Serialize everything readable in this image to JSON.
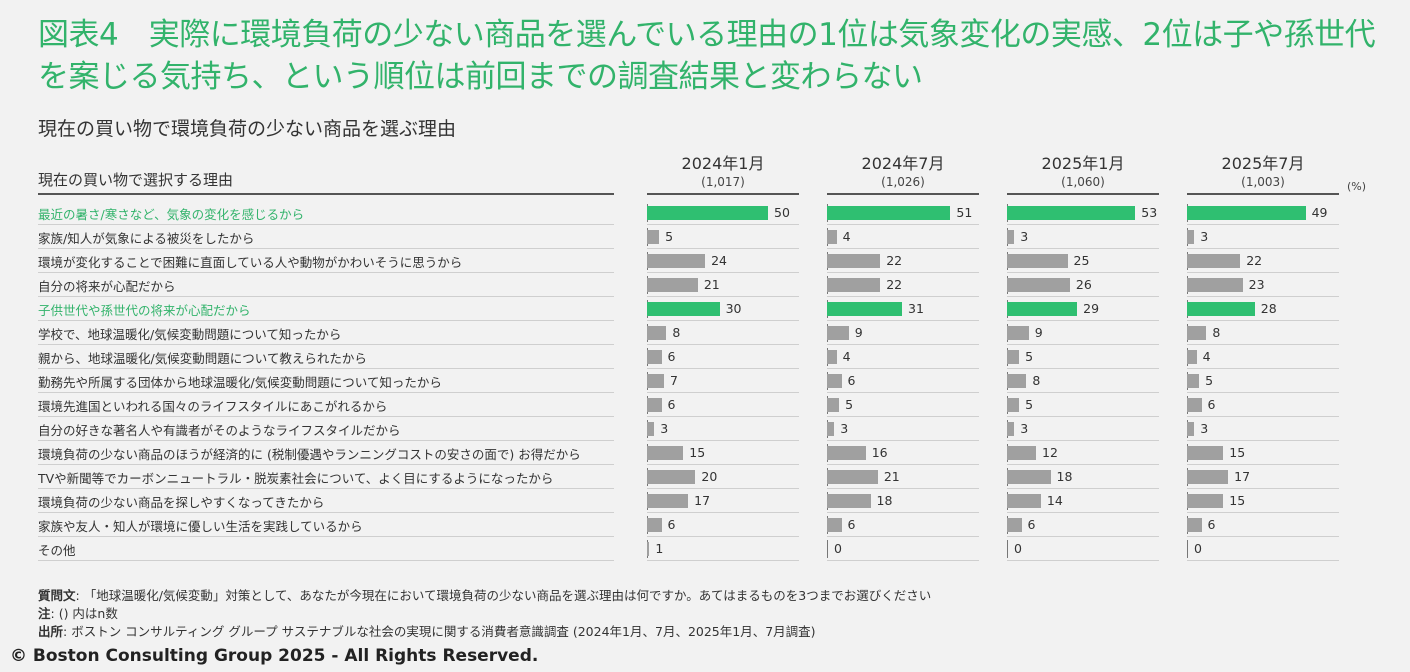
{
  "title": "図表4　実際に環境負荷の少ない商品を選んでいる理由の1位は気象変化の実感、2位は子や孫世代を案じる気持ち、という順位は前回までの調査結果と変わらない",
  "subtitle": "現在の買い物で環境負荷の少ない商品を選ぶ理由",
  "unit": "(%)",
  "notes": {
    "question_label": "質問文",
    "question": ": 「地球温暖化/気候変動」対策として、あなたが今現在において環境負荷の少ない商品を選ぶ理由は何ですか。あてはまるものを3つまでお選びください",
    "note_label": "注",
    "note": ": () 内はn数",
    "source_label": "出所",
    "source": ": ボストン コンサルティング グループ サステナブルな社会の実現に関する消費者意識調査 (2024年1月、7月、2025年1月、7月調査)"
  },
  "copyright": "© Boston Consulting Group 2025 - All Rights Reserved.",
  "colors": {
    "accent": "#2fbf71",
    "bar": "#a0a0a0",
    "title": "#32b36b"
  },
  "chart_data": {
    "type": "bar",
    "orientation": "horizontal",
    "category_header": "現在の買い物で選択する理由",
    "categories": [
      "最近の暑さ/寒さなど、気象の変化を感じるから",
      "家族/知人が気象による被災をしたから",
      "環境が変化することで困難に直面している人や動物がかわいそうに思うから",
      "自分の将来が心配だから",
      "子供世代や孫世代の将来が心配だから",
      "学校で、地球温暖化/気候変動問題について知ったから",
      "親から、地球温暖化/気候変動問題について教えられたから",
      "勤務先や所属する団体から地球温暖化/気候変動問題について知ったから",
      "環境先進国といわれる国々のライフスタイルにあこがれるから",
      "自分の好きな著名人や有識者がそのようなライフスタイルだから",
      "環境負荷の少ない商品のほうが経済的に (税制優遇やランニングコストの安さの面で) お得だから",
      "TVや新聞等でカーボンニュートラル・脱炭素社会について、よく目にするようになったから",
      "環境負荷の少ない商品を探しやすくなってきたから",
      "家族や友人・知人が環境に優しい生活を実践しているから",
      "その他"
    ],
    "highlighted": [
      0,
      4
    ],
    "series": [
      {
        "name": "2024年1月",
        "n": "(1,017)",
        "values": [
          50,
          5,
          24,
          21,
          30,
          8,
          6,
          7,
          6,
          3,
          15,
          20,
          17,
          6,
          1
        ]
      },
      {
        "name": "2024年7月",
        "n": "(1,026)",
        "values": [
          51,
          4,
          22,
          22,
          31,
          9,
          4,
          6,
          5,
          3,
          16,
          21,
          18,
          6,
          0
        ]
      },
      {
        "name": "2025年1月",
        "n": "(1,060)",
        "values": [
          53,
          3,
          25,
          26,
          29,
          9,
          5,
          8,
          5,
          3,
          12,
          18,
          14,
          6,
          0
        ]
      },
      {
        "name": "2025年7月",
        "n": "(1,003)",
        "values": [
          49,
          3,
          22,
          23,
          28,
          8,
          4,
          5,
          6,
          3,
          15,
          17,
          15,
          6,
          0
        ]
      }
    ],
    "xlim": [
      0,
      65
    ]
  }
}
